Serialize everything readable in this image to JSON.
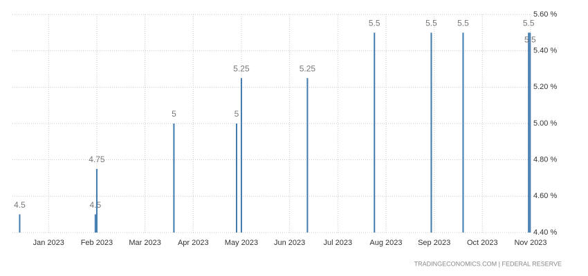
{
  "chart_data": {
    "type": "bar",
    "source": "TRADINGECONOMICS.COM  |  FEDERAL RESERVE",
    "x": [
      -0.6,
      0.97,
      1.0,
      2.6,
      3.9,
      4.0,
      5.37,
      6.76,
      7.94,
      8.6,
      9.96,
      9.99
    ],
    "values": [
      4.5,
      4.5,
      4.75,
      5,
      5,
      5.25,
      5.25,
      5.5,
      5.5,
      5.5,
      5.5,
      5.5
    ],
    "color": "#3f79ad",
    "xlim": [
      -0.75,
      10.0
    ],
    "xticks": [
      {
        "value": 0,
        "label": "Jan 2023"
      },
      {
        "value": 1,
        "label": "Feb 2023"
      },
      {
        "value": 2,
        "label": "Mar 2023"
      },
      {
        "value": 3,
        "label": "Apr 2023"
      },
      {
        "value": 4,
        "label": "May 2023"
      },
      {
        "value": 5,
        "label": "Jun 2023"
      },
      {
        "value": 6,
        "label": "Jul 2023"
      },
      {
        "value": 7,
        "label": "Aug 2023"
      },
      {
        "value": 8,
        "label": "Sep 2023"
      },
      {
        "value": 9,
        "label": "Oct 2023"
      },
      {
        "value": 10,
        "label": "Nov 2023"
      }
    ],
    "ylim": [
      4.4,
      5.6
    ],
    "yticks": [
      {
        "value": 4.4,
        "label": "4.40 %"
      },
      {
        "value": 4.6,
        "label": "4.60 %"
      },
      {
        "value": 4.8,
        "label": "4.80 %"
      },
      {
        "value": 5.0,
        "label": "5.00 %"
      },
      {
        "value": 5.2,
        "label": "5.20 %"
      },
      {
        "value": 5.4,
        "label": "5.40 %"
      },
      {
        "value": 5.6,
        "label": "5.60 %"
      }
    ],
    "grid": true
  }
}
